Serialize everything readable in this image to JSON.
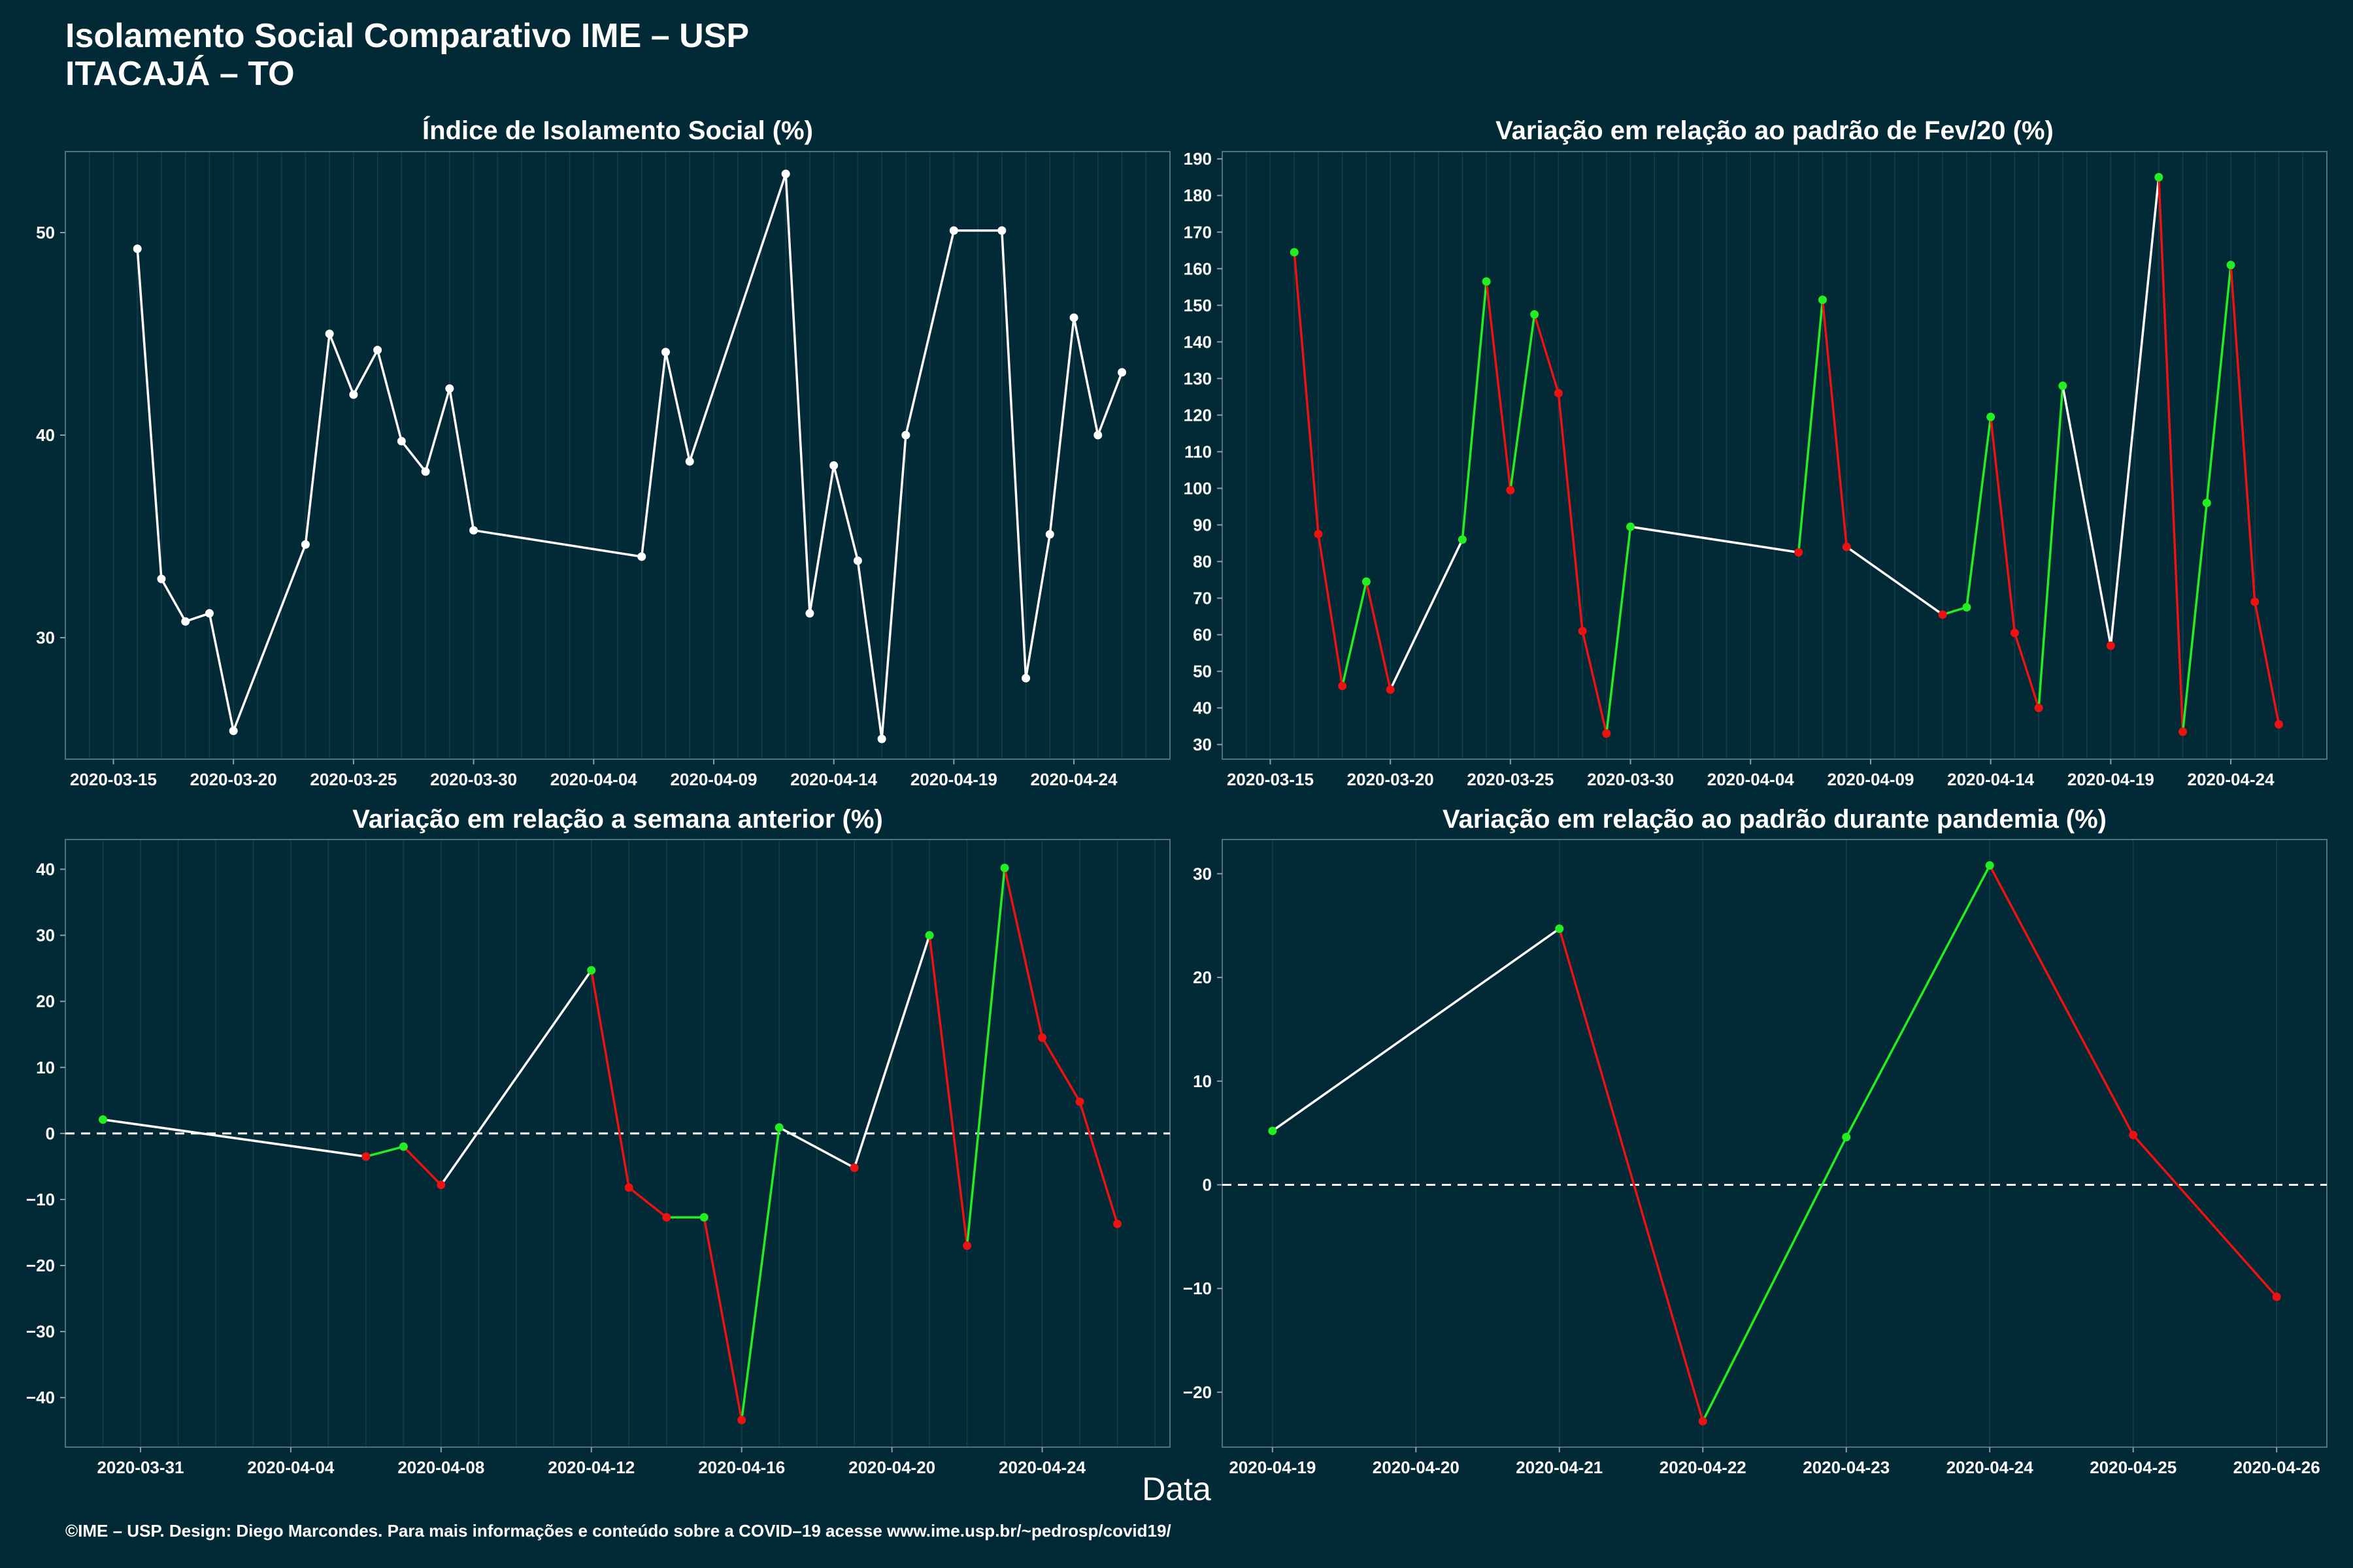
{
  "header": {
    "title_line1": "Isolamento Social Comparativo IME – USP",
    "title_line2": "ITACAJÁ – TO"
  },
  "x_axis_label": "Data",
  "footer": {
    "caption": "©IME – USP. Design: Diego Marcondes. Para mais informações e conteúdo sobre a COVID–19 acesse www.ime.usp.br/~pedrosp/covid19/"
  },
  "colors": {
    "background": "#022a36",
    "line_neutral": "#ffffff",
    "increase": "#22ee22",
    "decrease": "#ee1111",
    "grid": "#1c4852"
  },
  "chart_data": [
    {
      "id": "p1",
      "type": "line",
      "title": "Índice de Isolamento Social (%)",
      "x_ticks": [
        "2020-03-15",
        "2020-03-20",
        "2020-03-25",
        "2020-03-30",
        "2020-04-04",
        "2020-04-09",
        "2020-04-14",
        "2020-04-19",
        "2020-04-24"
      ],
      "y_ticks": [
        30,
        40,
        50
      ],
      "xlim": [
        "2020-03-13",
        "2020-04-28"
      ],
      "ylim": [
        24,
        54
      ],
      "colored": false,
      "points": [
        [
          "2020-03-16",
          49.2
        ],
        [
          "2020-03-17",
          32.9
        ],
        [
          "2020-03-18",
          30.8
        ],
        [
          "2020-03-19",
          31.2
        ],
        [
          "2020-03-20",
          25.4
        ],
        [
          "2020-03-23",
          34.6
        ],
        [
          "2020-03-24",
          45.0
        ],
        [
          "2020-03-25",
          42.0
        ],
        [
          "2020-03-26",
          44.2
        ],
        [
          "2020-03-27",
          39.7
        ],
        [
          "2020-03-28",
          38.2
        ],
        [
          "2020-03-29",
          42.3
        ],
        [
          "2020-03-30",
          35.3
        ],
        [
          "2020-04-06",
          34.0
        ],
        [
          "2020-04-07",
          44.1
        ],
        [
          "2020-04-08",
          38.7
        ],
        [
          "2020-04-12",
          52.9
        ],
        [
          "2020-04-13",
          31.2
        ],
        [
          "2020-04-14",
          38.5
        ],
        [
          "2020-04-15",
          33.8
        ],
        [
          "2020-04-16",
          25.0
        ],
        [
          "2020-04-17",
          40.0
        ],
        [
          "2020-04-19",
          50.1
        ],
        [
          "2020-04-21",
          50.1
        ],
        [
          "2020-04-22",
          28.0
        ],
        [
          "2020-04-23",
          35.1
        ],
        [
          "2020-04-24",
          45.8
        ],
        [
          "2020-04-25",
          40.0
        ],
        [
          "2020-04-26",
          43.1
        ]
      ]
    },
    {
      "id": "p2",
      "type": "line",
      "title": "Variação em relação ao padrão de Fev/20 (%)",
      "x_ticks": [
        "2020-03-15",
        "2020-03-20",
        "2020-03-25",
        "2020-03-30",
        "2020-04-04",
        "2020-04-09",
        "2020-04-14",
        "2020-04-19",
        "2020-04-24"
      ],
      "y_ticks": [
        30,
        40,
        50,
        60,
        70,
        80,
        90,
        100,
        110,
        120,
        130,
        140,
        150,
        160,
        170,
        180,
        190
      ],
      "xlim": [
        "2020-03-13",
        "2020-04-28"
      ],
      "ylim": [
        26,
        192
      ],
      "colored": true,
      "points": [
        [
          "2020-03-16",
          164.5
        ],
        [
          "2020-03-17",
          87.5
        ],
        [
          "2020-03-18",
          46.0
        ],
        [
          "2020-03-19",
          74.5
        ],
        [
          "2020-03-20",
          45.0
        ],
        [
          "2020-03-23",
          86.0
        ],
        [
          "2020-03-24",
          156.5
        ],
        [
          "2020-03-25",
          99.5
        ],
        [
          "2020-03-26",
          147.5
        ],
        [
          "2020-03-27",
          126.0
        ],
        [
          "2020-03-28",
          61.0
        ],
        [
          "2020-03-29",
          33.0
        ],
        [
          "2020-03-30",
          89.5
        ],
        [
          "2020-04-06",
          82.5
        ],
        [
          "2020-04-07",
          151.5
        ],
        [
          "2020-04-08",
          84.0
        ],
        [
          "2020-04-12",
          65.5
        ],
        [
          "2020-04-13",
          67.5
        ],
        [
          "2020-04-14",
          119.5
        ],
        [
          "2020-04-15",
          60.5
        ],
        [
          "2020-04-16",
          40.0
        ],
        [
          "2020-04-17",
          128.0
        ],
        [
          "2020-04-19",
          57.0
        ],
        [
          "2020-04-21",
          185.0
        ],
        [
          "2020-04-22",
          33.5
        ],
        [
          "2020-04-23",
          96.0
        ],
        [
          "2020-04-24",
          161.0
        ],
        [
          "2020-04-25",
          69.0
        ],
        [
          "2020-04-26",
          35.5
        ]
      ]
    },
    {
      "id": "p3",
      "type": "line",
      "title": "Variação em relação a semana anterior (%)",
      "x_ticks": [
        "2020-03-31",
        "2020-04-04",
        "2020-04-08",
        "2020-04-12",
        "2020-04-16",
        "2020-04-20",
        "2020-04-24"
      ],
      "y_ticks": [
        -40,
        -30,
        -20,
        -10,
        0,
        10,
        20,
        30,
        40
      ],
      "xlim": [
        "2020-03-29",
        "2020-04-27.4"
      ],
      "ylim": [
        -47.5,
        44.5
      ],
      "colored": true,
      "zero_line": true,
      "points": [
        [
          "2020-03-30",
          2.1
        ],
        [
          "2020-04-06",
          -3.5
        ],
        [
          "2020-04-07",
          -2.0
        ],
        [
          "2020-04-08",
          -7.8
        ],
        [
          "2020-04-12",
          24.7
        ],
        [
          "2020-04-13",
          -8.2
        ],
        [
          "2020-04-14",
          -12.7
        ],
        [
          "2020-04-15",
          -12.7
        ],
        [
          "2020-04-16",
          -43.4
        ],
        [
          "2020-04-17",
          0.9
        ],
        [
          "2020-04-19",
          -5.2
        ],
        [
          "2020-04-21",
          30.0
        ],
        [
          "2020-04-22",
          -17.0
        ],
        [
          "2020-04-23",
          40.2
        ],
        [
          "2020-04-24",
          14.5
        ],
        [
          "2020-04-25",
          4.8
        ],
        [
          "2020-04-26",
          -13.7
        ]
      ]
    },
    {
      "id": "p4",
      "type": "line",
      "title": "Variação em relação ao padrão durante pandemia (%)",
      "x_ticks": [
        "2020-04-19",
        "2020-04-20",
        "2020-04-21",
        "2020-04-22",
        "2020-04-23",
        "2020-04-24",
        "2020-04-25",
        "2020-04-26"
      ],
      "y_ticks": [
        -20,
        -10,
        0,
        10,
        20,
        30
      ],
      "xlim": [
        "2020-04-18.65",
        "2020-04-26.35"
      ],
      "ylim": [
        -25.3,
        33.3
      ],
      "colored": true,
      "zero_line": true,
      "points": [
        [
          "2020-04-19",
          5.2
        ],
        [
          "2020-04-21",
          24.7
        ],
        [
          "2020-04-22",
          -22.8
        ],
        [
          "2020-04-23",
          4.6
        ],
        [
          "2020-04-24",
          30.8
        ],
        [
          "2020-04-25",
          4.8
        ],
        [
          "2020-04-26",
          -10.8
        ]
      ]
    }
  ]
}
